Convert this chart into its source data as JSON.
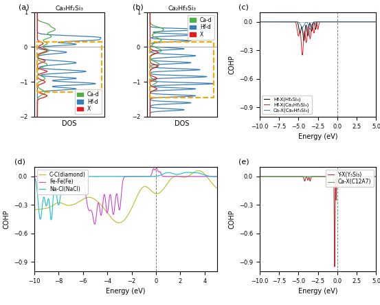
{
  "fig_width": 5.53,
  "fig_height": 4.44,
  "dpi": 100,
  "panel_a": {
    "title": "Ca₃Hf₂Si₃",
    "xlabel": "DOS",
    "ylim": [
      -2.0,
      1.0
    ],
    "yticks": [
      -2.0,
      -1.0,
      0.0,
      1.0
    ],
    "legend_labels": [
      "Ca-d",
      "Hf-d",
      "X"
    ],
    "legend_colors": [
      "#4daf4a",
      "#377eb8",
      "#e41a1c"
    ],
    "orange_box": {
      "x0": -0.5,
      "x1": 3.2,
      "y0": -1.3,
      "y1": 0.15
    }
  },
  "panel_b": {
    "title": "Ca₂Hf₃Si₃",
    "xlabel": "DOS",
    "ylim": [
      -2.0,
      1.0
    ],
    "yticks": [
      -2.0,
      -1.0,
      0.0,
      1.0
    ],
    "legend_labels": [
      "Ca-d",
      "Hf-d",
      "X"
    ],
    "legend_colors": [
      "#4daf4a",
      "#377eb8",
      "#e41a1c"
    ],
    "orange_box": {
      "x0": -0.5,
      "x1": 3.2,
      "y0": -1.45,
      "y1": 0.15
    }
  },
  "panel_c": {
    "xlabel": "Energy (eV)",
    "ylabel": "COHP",
    "xlim": [
      -10,
      5
    ],
    "ylim": [
      -1.0,
      0.1
    ],
    "yticks": [
      0.0,
      -0.3,
      -0.6,
      -0.9
    ],
    "vline": 0,
    "legend_labels": [
      "Hf-X(Hf₂Si₃)",
      "Hf-X(Ca₂Hf₃Si₃)",
      "Ca-X(Ca₂Hf₃Si₃)"
    ],
    "legend_colors": [
      "#000000",
      "#e41a1c",
      "#377eb8"
    ]
  },
  "panel_d": {
    "xlabel": "Energy (eV)",
    "ylabel": "COHP",
    "xlim": [
      -10,
      5
    ],
    "ylim": [
      -1.0,
      0.1
    ],
    "yticks": [
      0.0,
      -0.3,
      -0.6,
      -0.9
    ],
    "vline": 0,
    "legend_labels": [
      "C-C(diamond)",
      "Fe-Fe(Fe)",
      "Na-Cl(NaCl)"
    ],
    "legend_colors": [
      "#bcbd22",
      "#cc44cc",
      "#17becf"
    ]
  },
  "panel_e": {
    "xlabel": "Energy (eV)",
    "ylabel": "COHP",
    "xlim": [
      -10,
      5
    ],
    "ylim": [
      -1.0,
      0.1
    ],
    "yticks": [
      0.0,
      -0.3,
      -0.6,
      -0.9
    ],
    "vline": 0,
    "legend_labels": [
      "Y-X(Y₅Si₃)",
      "Ca-X(C12A7)"
    ],
    "legend_colors": [
      "#b03030",
      "#4daf4a"
    ]
  },
  "colors": {
    "ca_d": "#4daf4a",
    "hf_d": "#377eb8",
    "x_col": "#e41a1c",
    "orange": "#FFA500",
    "black": "#000000",
    "red": "#e41a1c",
    "blue": "#377eb8",
    "yellow_green": "#bcbd22",
    "purple": "#cc44cc",
    "cyan": "#17becf",
    "dark_red": "#b03030",
    "dark_green": "#4daf4a"
  }
}
